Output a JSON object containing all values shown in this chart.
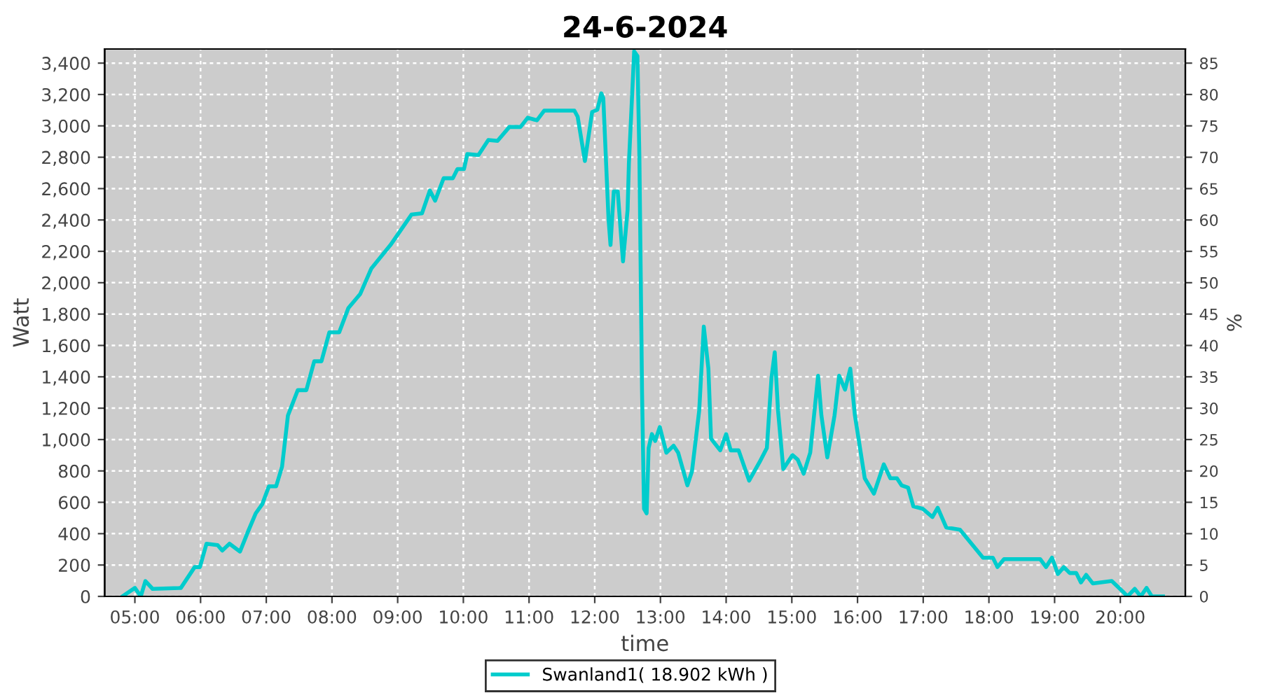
{
  "chart_data": {
    "type": "line",
    "title": "24-6-2024",
    "xlabel": "time",
    "ylabel": "Watt",
    "y2label": "%",
    "xlim": [
      4.54,
      20.99
    ],
    "xticks": [
      {
        "value": 5,
        "label": "05:00"
      },
      {
        "value": 6,
        "label": "06:00"
      },
      {
        "value": 7,
        "label": "07:00"
      },
      {
        "value": 8,
        "label": "08:00"
      },
      {
        "value": 9,
        "label": "09:00"
      },
      {
        "value": 10,
        "label": "10:00"
      },
      {
        "value": 11,
        "label": "11:00"
      },
      {
        "value": 12,
        "label": "12:00"
      },
      {
        "value": 13,
        "label": "13:00"
      },
      {
        "value": 14,
        "label": "14:00"
      },
      {
        "value": 15,
        "label": "15:00"
      },
      {
        "value": 16,
        "label": "16:00"
      },
      {
        "value": 17,
        "label": "17:00"
      },
      {
        "value": 18,
        "label": "18:00"
      },
      {
        "value": 19,
        "label": "19:00"
      },
      {
        "value": 20,
        "label": "20:00"
      }
    ],
    "ylim": [
      0,
      3490
    ],
    "yticks": [
      0,
      200,
      400,
      600,
      800,
      {
        "value": 1000,
        "label": "1,000"
      },
      {
        "value": 1200,
        "label": "1,200"
      },
      {
        "value": 1400,
        "label": "1,400"
      },
      {
        "value": 1600,
        "label": "1,600"
      },
      {
        "value": 1800,
        "label": "1,800"
      },
      {
        "value": 2000,
        "label": "2,000"
      },
      {
        "value": 2200,
        "label": "2,200"
      },
      {
        "value": 2400,
        "label": "2,400"
      },
      {
        "value": 2600,
        "label": "2,600"
      },
      {
        "value": 2800,
        "label": "2,800"
      },
      {
        "value": 3000,
        "label": "3,000"
      },
      {
        "value": 3200,
        "label": "3,200"
      },
      {
        "value": 3400,
        "label": "3,400"
      }
    ],
    "y2lim": [
      0,
      87.25
    ],
    "y2ticks": [
      0,
      5,
      10,
      15,
      20,
      25,
      30,
      35,
      40,
      45,
      50,
      55,
      60,
      65,
      70,
      75,
      80,
      85
    ],
    "grid": true,
    "legend": "bottom",
    "marker": "none",
    "line_style": "solid",
    "series": [
      {
        "name": "Swanland1( 18.902 kWh )",
        "color": "#00cccc",
        "x": [
          4.81,
          5.0,
          5.09,
          5.16,
          5.27,
          5.7,
          5.91,
          5.99,
          6.09,
          6.26,
          6.33,
          6.44,
          6.6,
          6.72,
          6.84,
          6.94,
          7.04,
          7.15,
          7.24,
          7.33,
          7.48,
          7.61,
          7.73,
          7.84,
          7.96,
          8.11,
          8.25,
          8.43,
          8.6,
          8.89,
          9.21,
          9.37,
          9.49,
          9.57,
          9.7,
          9.84,
          9.91,
          10.01,
          10.06,
          10.23,
          10.38,
          10.52,
          10.7,
          10.87,
          10.98,
          11.12,
          11.23,
          11.69,
          11.74,
          11.85,
          11.96,
          12.04,
          12.1,
          12.13,
          12.21,
          12.24,
          12.29,
          12.35,
          12.43,
          12.5,
          12.52,
          12.6,
          12.65,
          12.68,
          12.72,
          12.75,
          12.79,
          12.82,
          12.87,
          12.92,
          12.99,
          13.09,
          13.2,
          13.27,
          13.41,
          13.48,
          13.59,
          13.66,
          13.73,
          13.77,
          13.91,
          14.0,
          14.07,
          14.19,
          14.35,
          14.51,
          14.62,
          14.69,
          14.74,
          14.79,
          14.87,
          15.01,
          15.09,
          15.18,
          15.28,
          15.4,
          15.45,
          15.54,
          15.65,
          15.72,
          15.81,
          15.89,
          15.96,
          16.11,
          16.25,
          16.4,
          16.5,
          16.6,
          16.67,
          16.77,
          16.85,
          16.99,
          17.14,
          17.22,
          17.35,
          17.56,
          17.91,
          18.06,
          18.13,
          18.23,
          18.78,
          18.87,
          18.96,
          19.05,
          19.14,
          19.23,
          19.33,
          19.4,
          19.48,
          19.58,
          19.87,
          20.04,
          20.11,
          20.22,
          20.31,
          20.4,
          20.48,
          20.65
        ],
        "values": [
          0,
          54,
          0,
          98,
          48,
          54,
          187,
          187,
          336,
          327,
          292,
          336,
          286,
          411,
          530,
          589,
          702,
          702,
          827,
          1154,
          1315,
          1315,
          1499,
          1499,
          1684,
          1684,
          1839,
          1928,
          2091,
          2240,
          2434,
          2442,
          2588,
          2523,
          2666,
          2666,
          2725,
          2725,
          2820,
          2814,
          2910,
          2904,
          2993,
          2993,
          3052,
          3035,
          3097,
          3097,
          3058,
          2776,
          3088,
          3103,
          3207,
          3177,
          2404,
          2240,
          2582,
          2582,
          2136,
          2463,
          2761,
          3475,
          3445,
          2791,
          1303,
          559,
          530,
          946,
          1035,
          991,
          1080,
          916,
          961,
          916,
          708,
          797,
          1184,
          1720,
          1452,
          1006,
          931,
          1035,
          931,
          931,
          738,
          857,
          946,
          1392,
          1556,
          1184,
          812,
          901,
          872,
          782,
          916,
          1407,
          1154,
          886,
          1154,
          1407,
          1318,
          1452,
          1154,
          753,
          655,
          842,
          753,
          753,
          708,
          693,
          574,
          559,
          506,
          565,
          440,
          425,
          247,
          247,
          187,
          238,
          238,
          187,
          247,
          143,
          187,
          149,
          149,
          89,
          137,
          83,
          98,
          30,
          0,
          48,
          0,
          54,
          0,
          0
        ]
      }
    ]
  }
}
